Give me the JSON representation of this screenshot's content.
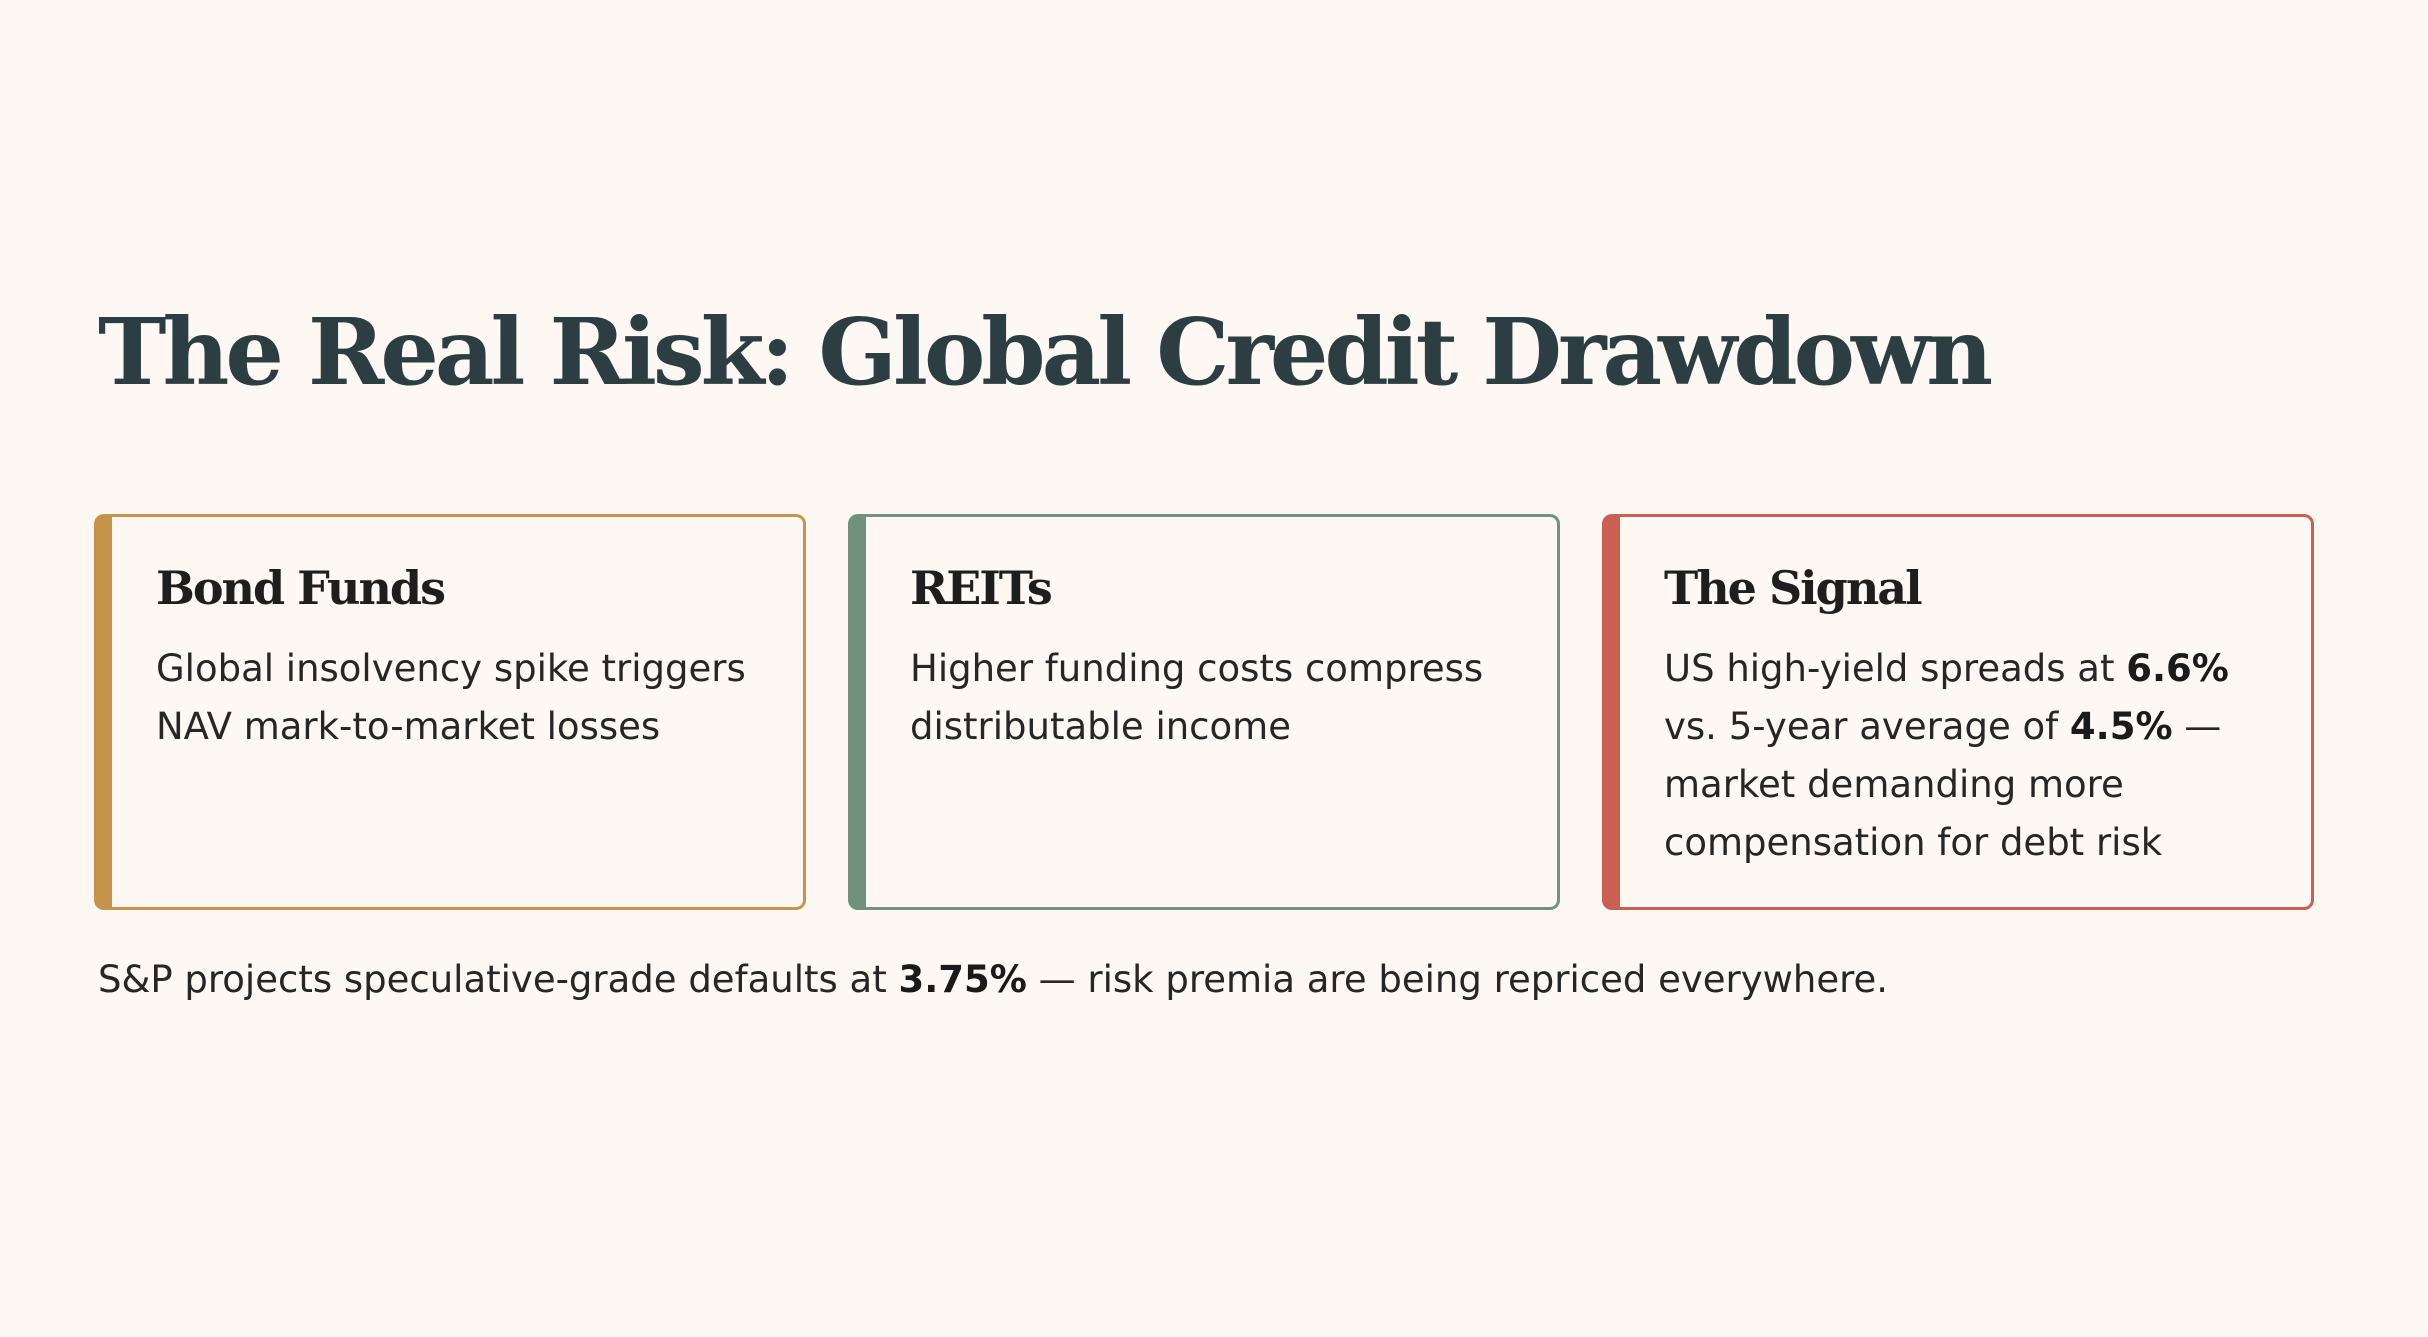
{
  "title": "The Real Risk: Global Credit Drawdown",
  "cards": [
    {
      "title": "Bond Funds",
      "body": "Global insolvency spike triggers NAV mark-to-market losses",
      "accent_color": "#c59349"
    },
    {
      "title": "REITs",
      "body": "Higher funding costs compress distributable income",
      "accent_color": "#71917a"
    },
    {
      "title": "The Signal",
      "body_text_1": "US high-yield spreads at ",
      "body_highlight_1": "6.6%",
      "body_text_2": " vs. 5-year average of ",
      "body_highlight_2": "4.5%",
      "body_text_3": " — market demanding more compensation for debt risk",
      "accent_color": "#cc5f52"
    }
  ],
  "footnote": {
    "text_1": "S&P projects speculative-grade defaults at ",
    "highlight": "3.75%",
    "text_2": " — risk premia are being repriced everywhere."
  },
  "colors": {
    "background": "#fdf8f3",
    "title": "#2c3e42",
    "text": "#262626"
  }
}
